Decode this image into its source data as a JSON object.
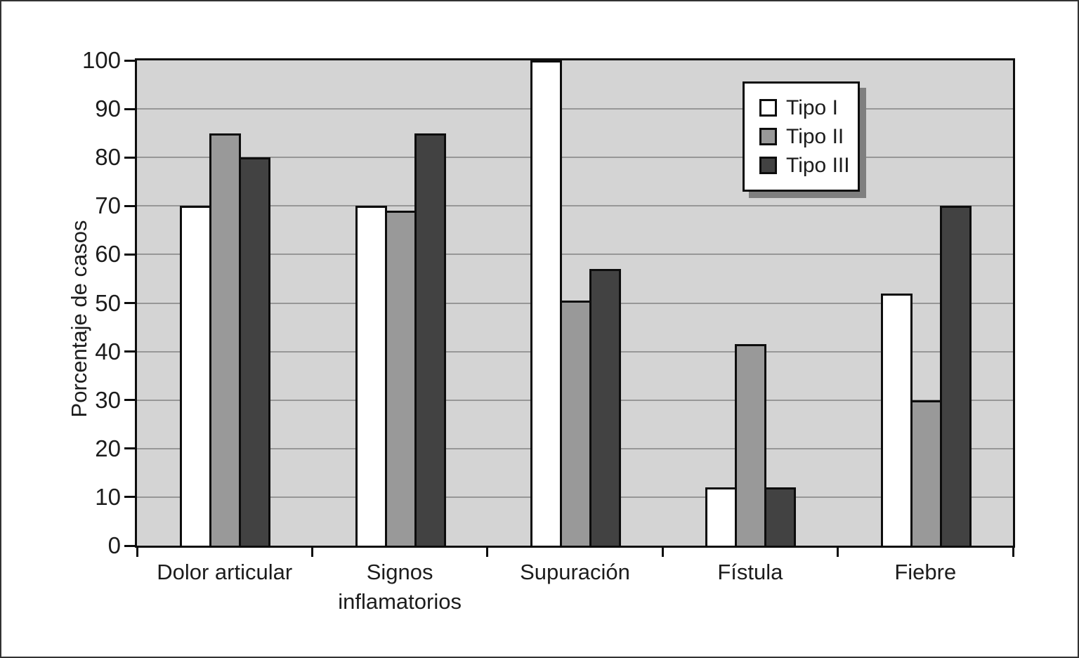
{
  "figure": {
    "background": "#ffffff",
    "border_color": "#333333"
  },
  "chart_data": {
    "type": "bar",
    "title": "",
    "xlabel": "",
    "ylabel": "Porcentaje de casos",
    "categories": [
      "Dolor articular",
      "Signos inflamatorios",
      "Supuración",
      "Fístula",
      "Fiebre"
    ],
    "series": [
      {
        "name": "Tipo I",
        "color": "#ffffff",
        "values": [
          70,
          70,
          100,
          12,
          52
        ]
      },
      {
        "name": "Tipo II",
        "color": "#999999",
        "values": [
          85,
          69,
          50.5,
          41.5,
          30
        ]
      },
      {
        "name": "Tipo III",
        "color": "#424242",
        "values": [
          80,
          85,
          57,
          12,
          70
        ]
      }
    ],
    "ylim": [
      0,
      100
    ],
    "ytick_step": 10,
    "yticks": [
      0,
      10,
      20,
      30,
      40,
      50,
      60,
      70,
      80,
      90,
      100
    ],
    "grid": true,
    "legend_position": "top-right",
    "colors": {
      "plot_bg": "#d4d4d4",
      "grid": "#979797",
      "axis": "#0d0d0d",
      "legend_shadow": "#7f7f7f"
    }
  }
}
